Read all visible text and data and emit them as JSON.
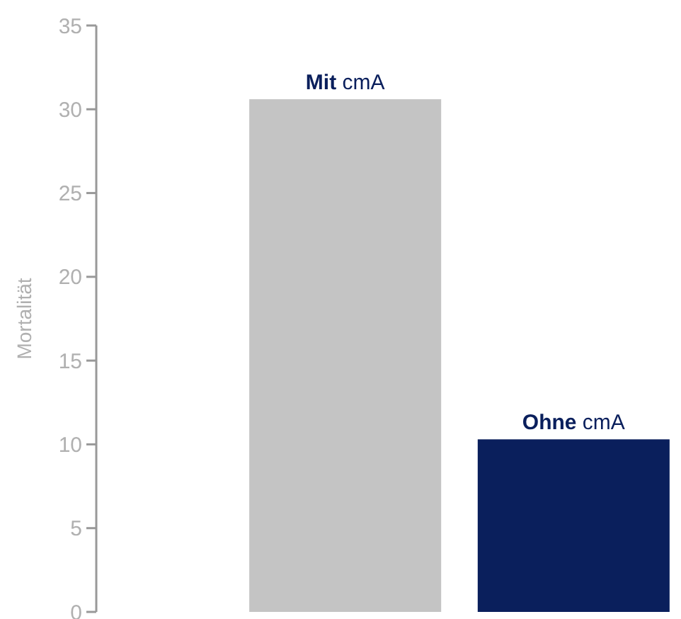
{
  "chart_data": {
    "type": "bar",
    "ylabel": "Mortalität",
    "categories": [
      "Mit cmA",
      "Ohne cmA"
    ],
    "values": [
      30.6,
      10.3
    ],
    "colors": [
      "#c4c4c4",
      "#0a1f5c"
    ],
    "ylim": [
      0,
      35
    ],
    "yticks": [
      0,
      5,
      10,
      15,
      20,
      25,
      30,
      35
    ],
    "grid": false
  }
}
